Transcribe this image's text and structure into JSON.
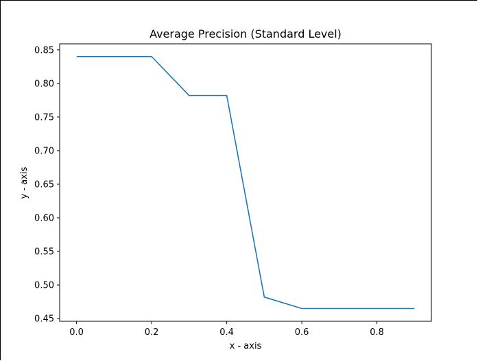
{
  "chart_data": {
    "type": "line",
    "title": "Average Precision (Standard Level)",
    "xlabel": "x - axis",
    "ylabel": "y - axis",
    "x": [
      0.0,
      0.1,
      0.2,
      0.3,
      0.4,
      0.5,
      0.6,
      0.7,
      0.8,
      0.9
    ],
    "series": [
      {
        "values": [
          0.84,
          0.84,
          0.84,
          0.782,
          0.782,
          0.482,
          0.465,
          0.465,
          0.465,
          0.465
        ],
        "color": "#1f77b4"
      }
    ],
    "xlim": [
      -0.045,
      0.945
    ],
    "ylim": [
      0.446,
      0.859
    ],
    "xticks": [
      {
        "value": 0.0,
        "label": "0.0"
      },
      {
        "value": 0.2,
        "label": "0.2"
      },
      {
        "value": 0.4,
        "label": "0.4"
      },
      {
        "value": 0.6,
        "label": "0.6"
      },
      {
        "value": 0.8,
        "label": "0.8"
      }
    ],
    "yticks": [
      {
        "value": 0.45,
        "label": "0.45"
      },
      {
        "value": 0.5,
        "label": "0.50"
      },
      {
        "value": 0.55,
        "label": "0.55"
      },
      {
        "value": 0.6,
        "label": "0.60"
      },
      {
        "value": 0.65,
        "label": "0.65"
      },
      {
        "value": 0.7,
        "label": "0.70"
      },
      {
        "value": 0.75,
        "label": "0.75"
      },
      {
        "value": 0.8,
        "label": "0.80"
      },
      {
        "value": 0.85,
        "label": "0.85"
      }
    ],
    "grid": false,
    "legend": "none"
  }
}
